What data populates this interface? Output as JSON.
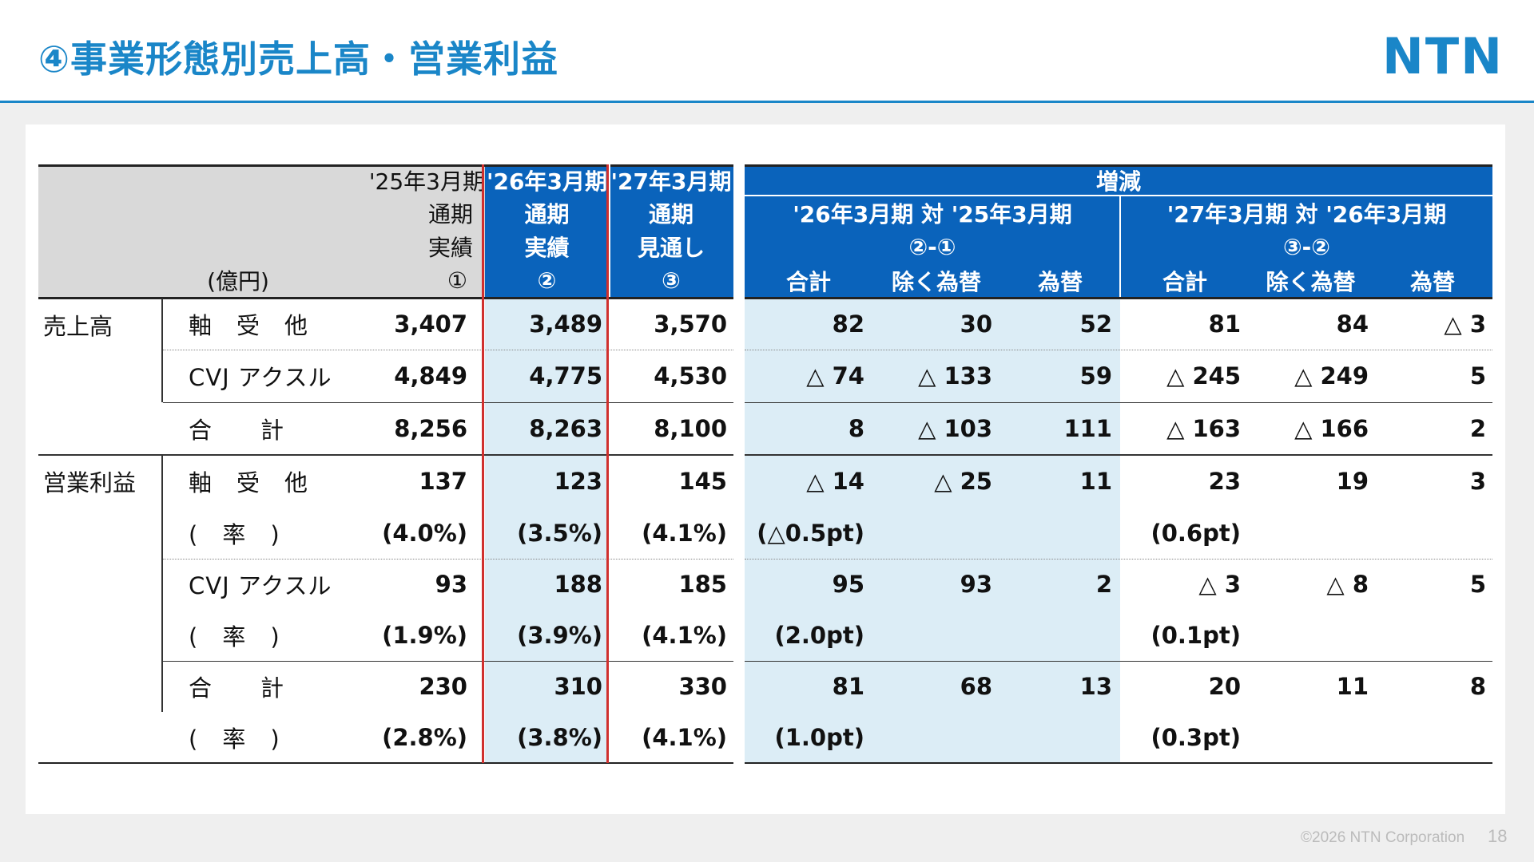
{
  "page": {
    "title": "④事業形態別売上高・営業利益",
    "logo": "NTN",
    "copyright": "©2026 NTN Corporation",
    "page_number": "18"
  },
  "colors": {
    "accent": "#1a86c8",
    "header_blue": "#0a63bb",
    "highlight": "#dcedf6",
    "red_frame": "#d0302e"
  },
  "table": {
    "unit": "(億円)",
    "col_fy25": [
      "'25年3月期",
      "通期",
      "実績",
      "①"
    ],
    "col_fy26": [
      "'26年3月期",
      "通期",
      "実績",
      "②"
    ],
    "col_fy27": [
      "'27年3月期",
      "通期",
      "見通し",
      "③"
    ],
    "change_title": "増減",
    "change1_title": "'26年3月期 対 '25年3月期",
    "change1_formula": "②-①",
    "change2_title": "'27年3月期 対 '26年3月期",
    "change2_formula": "③-②",
    "sub_total": "合計",
    "sub_excl_fx": "除く為替",
    "sub_fx": "為替",
    "sales_label": "売上高",
    "op_label": "営業利益",
    "rows": [
      {
        "label": "軸　受　他",
        "v": [
          "3,407",
          "3,489",
          "3,570",
          "82",
          "30",
          "52",
          "81",
          "84",
          "△ 3"
        ]
      },
      {
        "label": "CVJ アクスル",
        "v": [
          "4,849",
          "4,775",
          "4,530",
          "△ 74",
          "△ 133",
          "59",
          "△ 245",
          "△ 249",
          "5"
        ]
      },
      {
        "label": "合　　計",
        "v": [
          "8,256",
          "8,263",
          "8,100",
          "8",
          "△ 103",
          "111",
          "△ 163",
          "△ 166",
          "2"
        ]
      },
      {
        "label": "軸　受　他",
        "v": [
          "137",
          "123",
          "145",
          "△ 14",
          "△ 25",
          "11",
          "23",
          "19",
          "3"
        ]
      },
      {
        "label": "(　率　)",
        "v": [
          "(4.0%)",
          "(3.5%)",
          "(4.1%)",
          "(△0.5pt)",
          "",
          "",
          "(0.6pt)",
          "",
          ""
        ]
      },
      {
        "label": "CVJ アクスル",
        "v": [
          "93",
          "188",
          "185",
          "95",
          "93",
          "2",
          "△ 3",
          "△ 8",
          "5"
        ]
      },
      {
        "label": "(　率　)",
        "v": [
          "(1.9%)",
          "(3.9%)",
          "(4.1%)",
          "(2.0pt)",
          "",
          "",
          "(0.1pt)",
          "",
          ""
        ]
      },
      {
        "label": "合　　計",
        "v": [
          "230",
          "310",
          "330",
          "81",
          "68",
          "13",
          "20",
          "11",
          "8"
        ]
      },
      {
        "label": "(　率　)",
        "v": [
          "(2.8%)",
          "(3.8%)",
          "(4.1%)",
          "(1.0pt)",
          "",
          "",
          "(0.3pt)",
          "",
          ""
        ]
      }
    ]
  }
}
